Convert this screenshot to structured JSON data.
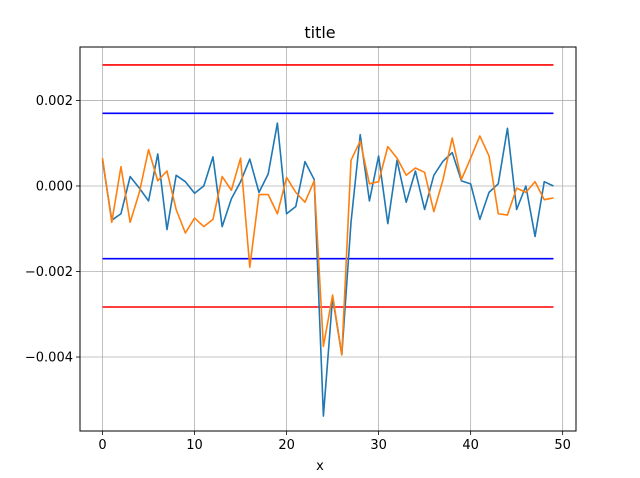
{
  "chart_data": {
    "type": "line",
    "title": "title",
    "xlabel": "x",
    "ylabel": "",
    "xlim": [
      -2.45,
      51.45
    ],
    "ylim": [
      -0.00573,
      0.00325
    ],
    "grid": true,
    "xticks": [
      0,
      10,
      20,
      30,
      40,
      50
    ],
    "xtick_labels": [
      "0",
      "10",
      "20",
      "30",
      "40",
      "50"
    ],
    "yticks": [
      0.002,
      0.0,
      -0.002,
      -0.004
    ],
    "ytick_labels": [
      "0.002",
      "0.000",
      "−0.002",
      "−0.004"
    ],
    "x": [
      0,
      1,
      2,
      3,
      4,
      5,
      6,
      7,
      8,
      9,
      10,
      11,
      12,
      13,
      14,
      15,
      16,
      17,
      18,
      19,
      20,
      21,
      22,
      23,
      24,
      25,
      26,
      27,
      28,
      29,
      30,
      31,
      32,
      33,
      34,
      35,
      36,
      37,
      38,
      39,
      40,
      41,
      42,
      43,
      44,
      45,
      46,
      47,
      48,
      49
    ],
    "series": [
      {
        "color": "#1f77b4",
        "values": [
          0.0006,
          -0.0008,
          -0.00065,
          0.00022,
          -5e-05,
          -0.00035,
          0.00075,
          -0.00102,
          0.00025,
          0.0001,
          -0.00017,
          0.0,
          0.00068,
          -0.00095,
          -0.0003,
          0.0001,
          0.00063,
          -0.00015,
          0.00028,
          0.00147,
          -0.00065,
          -0.00048,
          0.00057,
          0.00015,
          -0.00538,
          -0.0026,
          -0.00395,
          -0.00085,
          0.0012,
          -0.00035,
          0.0007,
          -0.00088,
          0.0006,
          -0.00038,
          0.00035,
          -0.00055,
          0.00025,
          0.00058,
          0.00078,
          0.00012,
          5e-05,
          -0.00078,
          -0.00015,
          5e-05,
          0.00135,
          -0.00055,
          -0.0,
          -0.00118,
          0.0001,
          0.0
        ]
      },
      {
        "color": "#ff7f0e",
        "values": [
          0.00065,
          -0.00085,
          0.00045,
          -0.00085,
          -0.00015,
          0.00085,
          0.00012,
          0.00035,
          -0.00055,
          -0.0011,
          -0.00075,
          -0.00095,
          -0.00078,
          0.00022,
          -0.0001,
          0.00065,
          -0.0019,
          -0.0002,
          -0.0002,
          -0.00065,
          0.0002,
          -0.00015,
          -0.00038,
          0.00012,
          -0.00375,
          -0.00255,
          -0.00395,
          0.0006,
          0.00105,
          5e-05,
          0.0001,
          0.00092,
          0.00065,
          0.00025,
          0.00042,
          0.00032,
          -0.0006,
          0.00015,
          0.00112,
          0.00015,
          0.00065,
          0.00117,
          0.0007,
          -0.00065,
          -0.00068,
          -5e-05,
          -0.00015,
          0.0001,
          -0.00032,
          -0.00028
        ]
      }
    ],
    "hlines": [
      {
        "y": 0.00283,
        "color": "#ff0000"
      },
      {
        "y": 0.0017,
        "color": "#0000ff"
      },
      {
        "y": -0.0017,
        "color": "#0000ff"
      },
      {
        "y": -0.00283,
        "color": "#ff0000"
      }
    ],
    "hline_xrange": [
      0,
      49
    ]
  }
}
